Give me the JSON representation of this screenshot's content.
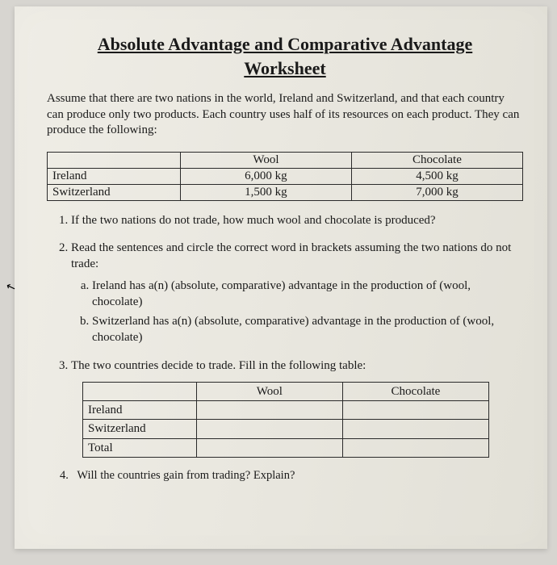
{
  "title_line1": "Absolute Advantage and Comparative Advantage",
  "title_line2": "Worksheet",
  "intro": "Assume that there are two nations in the world, Ireland and Switzerland, and that each country can produce only two products. Each country uses half of its resources on each product. They can produce the following:",
  "table1": {
    "columns": [
      "",
      "Wool",
      "Chocolate"
    ],
    "rows": [
      [
        "Ireland",
        "6,000 kg",
        "4,500 kg"
      ],
      [
        "Switzerland",
        "1,500 kg",
        "7,000 kg"
      ]
    ]
  },
  "questions": {
    "q1": "If the two nations do not trade, how much wool and chocolate is produced?",
    "q2": {
      "text": "Read the sentences and circle the correct word in brackets assuming the two nations do not trade:",
      "a": "Ireland has a(n) (absolute, comparative) advantage in the production of (wool, chocolate)",
      "b": "Switzerland has a(n) (absolute, comparative) advantage in the production of (wool, chocolate)"
    },
    "q3": "The two countries decide to trade. Fill in the following table:",
    "q4": "Will the countries gain from trading? Explain?"
  },
  "table2": {
    "columns": [
      "",
      "Wool",
      "Chocolate"
    ],
    "rows": [
      [
        "Ireland",
        "",
        ""
      ],
      [
        "Switzerland",
        "",
        ""
      ],
      [
        "Total",
        "",
        ""
      ]
    ]
  },
  "q4_num": "4."
}
